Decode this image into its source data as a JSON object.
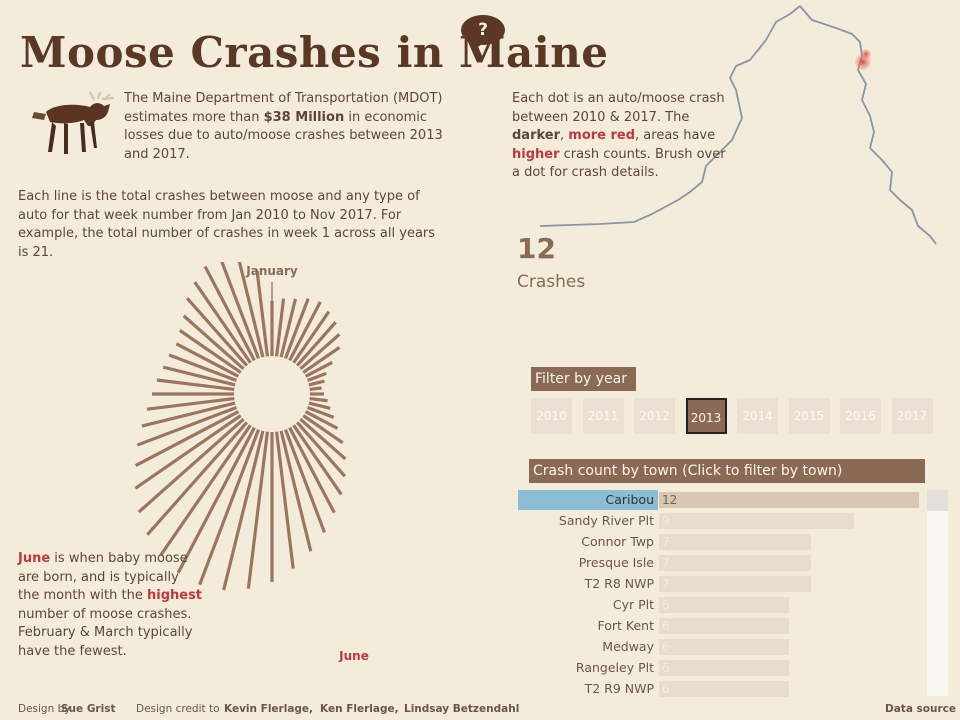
{
  "title": "Moose Crashes in Maine",
  "help_label": "?",
  "intro": {
    "part1": "The Maine Department of Transportation (MDOT) estimates more than ",
    "bold": "$38 Million",
    "part2": " in economic losses due to auto/moose crashes between 2013 and 2017."
  },
  "lines_desc": "Each line is the total crashes between moose and any type of auto for that week number from Jan 2010 to Nov 2017. For example, the total number of crashes in week 1 across all years is 21.",
  "map_desc": {
    "part1": "Each dot is an auto/moose crash between 2010 & 2017. The ",
    "darker": "darker",
    "comma": ", ",
    "more_red": "more red",
    "part2": ", areas have ",
    "higher": "higher",
    "part3": " crash counts. Brush over a dot for crash details."
  },
  "june_note": {
    "june": "June",
    "part1": " is when baby moose are born, and is typically the month with the ",
    "highest": "highest",
    "part2": " number of moose crashes. February & March typically have the fewest."
  },
  "burst": {
    "label_top": "January",
    "label_bottom": "June"
  },
  "summary": {
    "count": "12",
    "label": "Crashes"
  },
  "year_filter": {
    "header": "Filter by year",
    "years": [
      "2010",
      "2011",
      "2012",
      "2013",
      "2014",
      "2015",
      "2016",
      "2017"
    ],
    "selected": "2013"
  },
  "town_panel": {
    "header": "Crash count by town  (Click to filter by town)",
    "rows": [
      {
        "town": "Caribou",
        "count": 12,
        "label": "12",
        "selected": true
      },
      {
        "town": "Sandy River Plt",
        "count": 9,
        "label": "9",
        "selected": false
      },
      {
        "town": "Connor Twp",
        "count": 7,
        "label": "7",
        "selected": false
      },
      {
        "town": "Presque Isle",
        "count": 7,
        "label": "7",
        "selected": false
      },
      {
        "town": "T2 R8 NWP",
        "count": 7,
        "label": "7",
        "selected": false
      },
      {
        "town": "Cyr Plt",
        "count": 6,
        "label": "6",
        "selected": false
      },
      {
        "town": "Fort Kent",
        "count": 6,
        "label": "6",
        "selected": false
      },
      {
        "town": "Medway",
        "count": 6,
        "label": "6",
        "selected": false
      },
      {
        "town": "Rangeley Plt",
        "count": 6,
        "label": "6",
        "selected": false
      },
      {
        "town": "T2 R9 NWP",
        "count": 6,
        "label": "6",
        "selected": false
      }
    ]
  },
  "footer": {
    "design_by": "Design by",
    "author": "Sue Grist",
    "credit_prefix": "Design credit to",
    "credit1": "Kevin Flerlage,",
    "credit2": "Ken Flerlage,",
    "credit3": "Lindsay Betzendahl",
    "data_source": "Data source"
  },
  "colors": {
    "background": "#f4ecdb",
    "title": "#5b3825",
    "accent": "#8a6a55",
    "highlight": "#c0373d",
    "selected_town": "#8bbdd5"
  },
  "icons": {
    "help": "question-bubble-icon",
    "moose": "moose-illustration"
  }
}
